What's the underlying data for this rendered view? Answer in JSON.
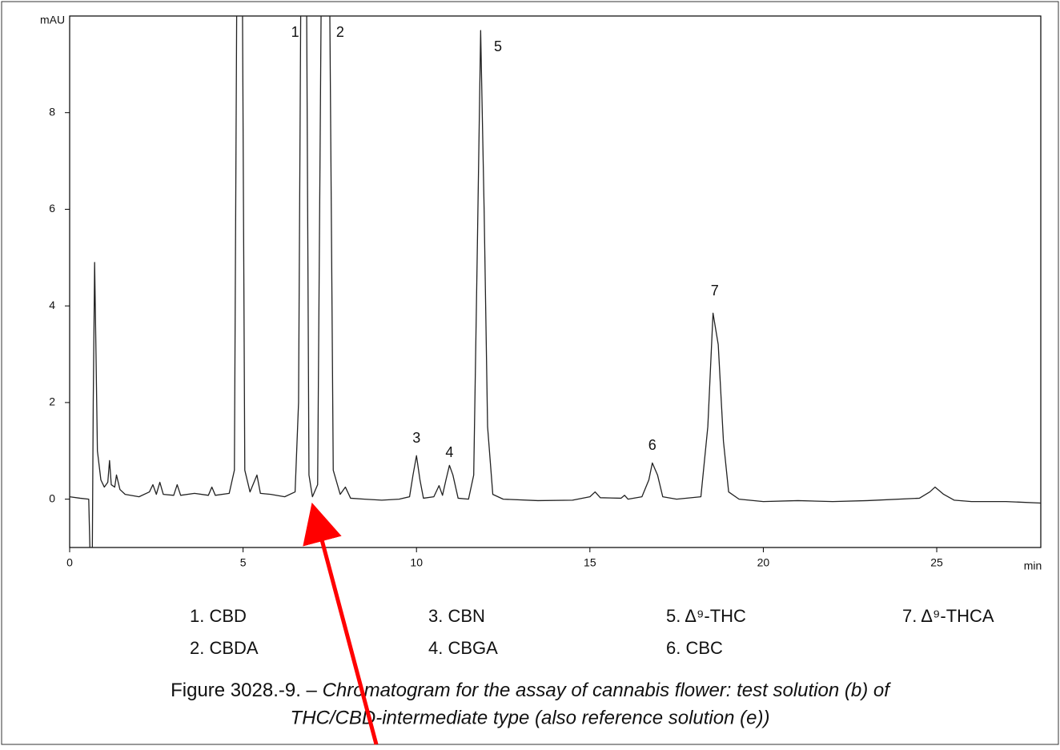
{
  "chart_data": {
    "type": "line",
    "ylabel": "mAU",
    "xlabel": "min",
    "xlim": [
      0,
      28
    ],
    "ylim": [
      -1,
      10
    ],
    "xticks": [
      0,
      5,
      10,
      15,
      20,
      25
    ],
    "yticks": [
      0,
      2,
      4,
      6,
      8
    ],
    "series": [
      {
        "color": "#222222",
        "x": [
          0,
          0.3,
          0.55,
          0.6,
          0.65,
          0.68,
          0.72,
          0.76,
          0.8,
          0.9,
          1.0,
          1.1,
          1.15,
          1.2,
          1.3,
          1.35,
          1.45,
          1.6,
          2.0,
          2.3,
          2.4,
          2.5,
          2.6,
          2.7,
          3.0,
          3.1,
          3.2,
          3.6,
          4.0,
          4.1,
          4.2,
          4.6,
          4.75,
          4.85,
          4.95,
          5.05,
          5.2,
          5.4,
          5.5,
          5.8,
          6.2,
          6.5,
          6.6,
          6.7,
          6.8,
          6.9,
          7.0,
          7.15,
          7.3,
          7.45,
          7.6,
          7.8,
          7.95,
          8.1,
          8.5,
          9.0,
          9.5,
          9.8,
          9.9,
          10.0,
          10.1,
          10.2,
          10.5,
          10.65,
          10.75,
          10.85,
          10.95,
          11.05,
          11.2,
          11.5,
          11.65,
          11.75,
          11.85,
          11.95,
          12.05,
          12.2,
          12.5,
          13.5,
          14.5,
          15.0,
          15.15,
          15.3,
          15.9,
          16.0,
          16.1,
          16.5,
          16.7,
          16.8,
          16.95,
          17.1,
          17.5,
          18.2,
          18.4,
          18.55,
          18.7,
          18.85,
          19.0,
          19.3,
          20,
          21,
          22,
          23,
          24.5,
          24.8,
          24.95,
          25.2,
          25.5,
          26,
          27,
          28
        ],
        "values": [
          0.05,
          0.02,
          0.0,
          -1.5,
          -1.5,
          2,
          4.9,
          3,
          1,
          0.4,
          0.25,
          0.35,
          0.8,
          0.3,
          0.25,
          0.5,
          0.2,
          0.1,
          0.05,
          0.15,
          0.3,
          0.1,
          0.35,
          0.1,
          0.08,
          0.3,
          0.08,
          0.12,
          0.08,
          0.25,
          0.08,
          0.12,
          0.6,
          15,
          15,
          0.6,
          0.15,
          0.5,
          0.12,
          0.1,
          0.05,
          0.15,
          2,
          15,
          15,
          0.5,
          0.05,
          0.3,
          15,
          15,
          0.6,
          0.1,
          0.25,
          0.02,
          0.0,
          -0.02,
          0.0,
          0.05,
          0.5,
          0.9,
          0.4,
          0.02,
          0.05,
          0.28,
          0.08,
          0.4,
          0.7,
          0.5,
          0.02,
          0.0,
          0.5,
          5,
          9.7,
          6,
          1.5,
          0.1,
          0.0,
          -0.03,
          -0.02,
          0.05,
          0.15,
          0.03,
          0.02,
          0.08,
          0.0,
          0.05,
          0.4,
          0.75,
          0.5,
          0.05,
          0.0,
          0.05,
          1.5,
          3.85,
          3.2,
          1.2,
          0.15,
          0.0,
          -0.05,
          -0.03,
          -0.05,
          -0.03,
          0.02,
          0.15,
          0.25,
          0.1,
          -0.02,
          -0.05,
          -0.05,
          -0.08
        ]
      }
    ],
    "peak_labels": [
      {
        "text": "1",
        "x": 6.5,
        "y": 9.65
      },
      {
        "text": "2",
        "x": 7.8,
        "y": 9.65
      },
      {
        "text": "3",
        "x": 10.0,
        "y": 1.25
      },
      {
        "text": "4",
        "x": 10.95,
        "y": 0.95
      },
      {
        "text": "5",
        "x": 12.35,
        "y": 9.35
      },
      {
        "text": "6",
        "x": 16.8,
        "y": 1.1
      },
      {
        "text": "7",
        "x": 18.6,
        "y": 4.3
      }
    ],
    "compounds": [
      "1. CBD",
      "2. CBDA",
      "3. CBN",
      "4. CBGA",
      "5. Δ⁹-THC",
      "6. CBC",
      "7. Δ⁹-THCA"
    ],
    "caption": {
      "label": "Figure 3028.-9. – ",
      "lines": [
        "Chromatogram for the assay of cannabis flower: test solution (b) of",
        "THC/CBD-intermediate type (also reference solution (e))"
      ]
    }
  }
}
